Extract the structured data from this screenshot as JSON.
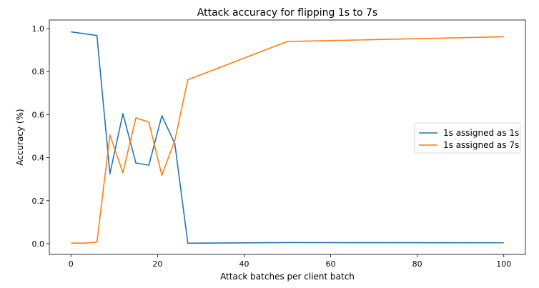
{
  "chart_data": {
    "type": "line",
    "title": "Attack accuracy for flipping 1s to 7s",
    "xlabel": "Attack batches per client batch",
    "ylabel": "Accuracy (%)",
    "xlim": [
      -5,
      105
    ],
    "ylim": [
      -0.05,
      1.04
    ],
    "xticks": [
      0,
      20,
      40,
      60,
      80,
      100
    ],
    "yticks": [
      0.0,
      0.2,
      0.4,
      0.6,
      0.8,
      1.0
    ],
    "xtick_labels": [
      "0",
      "20",
      "40",
      "60",
      "80",
      "100"
    ],
    "ytick_labels": [
      "0.0",
      "0.2",
      "0.4",
      "0.6",
      "0.8",
      "1.0"
    ],
    "grid": false,
    "legend_position": "center-right",
    "series": [
      {
        "name": "1s assigned as 1s",
        "color": "#1f77b4",
        "x": [
          0,
          6,
          9,
          12,
          15,
          18,
          21,
          24,
          27,
          50,
          100
        ],
        "y": [
          0.985,
          0.968,
          0.325,
          0.605,
          0.375,
          0.365,
          0.595,
          0.465,
          0.002,
          0.005,
          0.004
        ]
      },
      {
        "name": "1s assigned as 7s",
        "color": "#ff7f0e",
        "x": [
          0,
          3,
          6,
          9,
          12,
          15,
          18,
          21,
          24,
          27,
          50,
          100
        ],
        "y": [
          0.003,
          0.002,
          0.007,
          0.505,
          0.33,
          0.585,
          0.565,
          0.318,
          0.48,
          0.762,
          0.94,
          0.962
        ]
      }
    ]
  }
}
